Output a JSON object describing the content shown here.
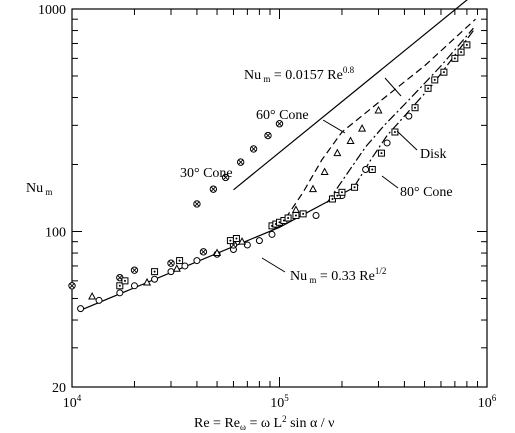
{
  "chart_data": {
    "type": "scatter",
    "x_scale": "log",
    "y_scale": "log",
    "xlim": [
      10000,
      1000000
    ],
    "ylim": [
      20,
      1000
    ],
    "xlabel": "Re = Reω = ω L² sin α / ν",
    "ylabel": "Nu m",
    "x_ticks": [
      {
        "value": 10000,
        "base": "10",
        "exp": "4"
      },
      {
        "value": 100000,
        "base": "10",
        "exp": "5"
      },
      {
        "value": 1000000,
        "base": "10",
        "exp": "6"
      }
    ],
    "y_ticks": [
      {
        "value": 1000,
        "label": "1000"
      },
      {
        "value": 100,
        "label": "100"
      },
      {
        "value": 20,
        "label": "20"
      }
    ],
    "annotations": {
      "turbulent": {
        "base": "Nu",
        "sub": "m",
        "mid": " = 0.0157 Re",
        "sup": "0.8"
      },
      "laminar": {
        "base": "Nu",
        "sub": "m",
        "mid": " = 0.33 Re",
        "sup": "1/2"
      },
      "cone60": "60° Cone",
      "cone30": "30° Cone",
      "disk": "Disk",
      "cone80": "80° Cone"
    },
    "lines": [
      {
        "name": "laminar",
        "style": "solid",
        "points": [
          [
            11000,
            44.3
          ],
          [
            100000,
            104.4
          ],
          [
            240000,
            161.7
          ]
        ]
      },
      {
        "name": "turbulent",
        "style": "solid",
        "points": [
          [
            60000,
            154
          ],
          [
            900000,
            1200
          ]
        ]
      },
      {
        "name": "60-cone",
        "style": "dashed",
        "points": [
          [
            100000,
            104.4
          ],
          [
            130000,
            150
          ],
          [
            160000,
            210
          ],
          [
            200000,
            280
          ],
          [
            300000,
            380
          ],
          [
            500000,
            555
          ],
          [
            880000,
            900
          ]
        ]
      },
      {
        "name": "disk",
        "style": "dashdot",
        "points": [
          [
            170000,
            135
          ],
          [
            210000,
            180
          ],
          [
            260000,
            240
          ],
          [
            320000,
            300
          ],
          [
            420000,
            390
          ],
          [
            600000,
            555
          ],
          [
            860000,
            820
          ]
        ]
      },
      {
        "name": "80-cone",
        "style": "dashdot",
        "points": [
          [
            230000,
            160
          ],
          [
            280000,
            215
          ],
          [
            330000,
            270
          ],
          [
            400000,
            330
          ],
          [
            550000,
            460
          ],
          [
            860000,
            800
          ]
        ]
      }
    ],
    "series": [
      {
        "marker": "circle",
        "points": [
          [
            11000,
            45
          ],
          [
            13500,
            49
          ],
          [
            17000,
            53
          ],
          [
            20000,
            57
          ],
          [
            25000,
            61
          ],
          [
            30000,
            66
          ],
          [
            35000,
            70
          ],
          [
            40000,
            74
          ],
          [
            50000,
            79
          ],
          [
            60000,
            83
          ],
          [
            70000,
            87
          ],
          [
            80000,
            91
          ],
          [
            92000,
            97
          ],
          [
            150000,
            118
          ],
          [
            200000,
            145
          ],
          [
            260000,
            190
          ],
          [
            330000,
            250
          ],
          [
            420000,
            330
          ]
        ]
      },
      {
        "marker": "circle-cross",
        "points": [
          [
            10000,
            57
          ],
          [
            17000,
            62
          ],
          [
            20000,
            67
          ],
          [
            30000,
            72
          ],
          [
            43000,
            81
          ],
          [
            60000,
            87
          ],
          [
            40000,
            133
          ],
          [
            48000,
            155
          ],
          [
            55000,
            175
          ],
          [
            65000,
            205
          ],
          [
            75000,
            235
          ],
          [
            88000,
            270
          ],
          [
            100000,
            305
          ]
        ]
      },
      {
        "marker": "triangle",
        "points": [
          [
            12500,
            51
          ],
          [
            23000,
            59
          ],
          [
            32000,
            68
          ],
          [
            50000,
            80
          ],
          [
            66000,
            90
          ],
          [
            95000,
            107
          ],
          [
            120000,
            125
          ],
          [
            145000,
            155
          ],
          [
            165000,
            185
          ],
          [
            190000,
            225
          ],
          [
            220000,
            255
          ],
          [
            250000,
            290
          ],
          [
            300000,
            350
          ]
        ]
      },
      {
        "marker": "square-dot",
        "points": [
          [
            17000,
            57
          ],
          [
            18000,
            60
          ],
          [
            25000,
            66
          ],
          [
            33000,
            74
          ],
          [
            58000,
            91
          ],
          [
            62000,
            93
          ],
          [
            92000,
            106
          ],
          [
            96000,
            108
          ],
          [
            100000,
            110
          ],
          [
            105000,
            112
          ],
          [
            110000,
            115
          ],
          [
            120000,
            118
          ],
          [
            130000,
            120
          ],
          [
            180000,
            140
          ],
          [
            190000,
            145
          ],
          [
            200000,
            150
          ],
          [
            230000,
            158
          ],
          [
            280000,
            190
          ],
          [
            310000,
            225
          ],
          [
            360000,
            280
          ],
          [
            450000,
            360
          ],
          [
            520000,
            440
          ],
          [
            560000,
            480
          ],
          [
            620000,
            520
          ],
          [
            700000,
            600
          ],
          [
            750000,
            640
          ],
          [
            800000,
            690
          ]
        ]
      }
    ]
  }
}
